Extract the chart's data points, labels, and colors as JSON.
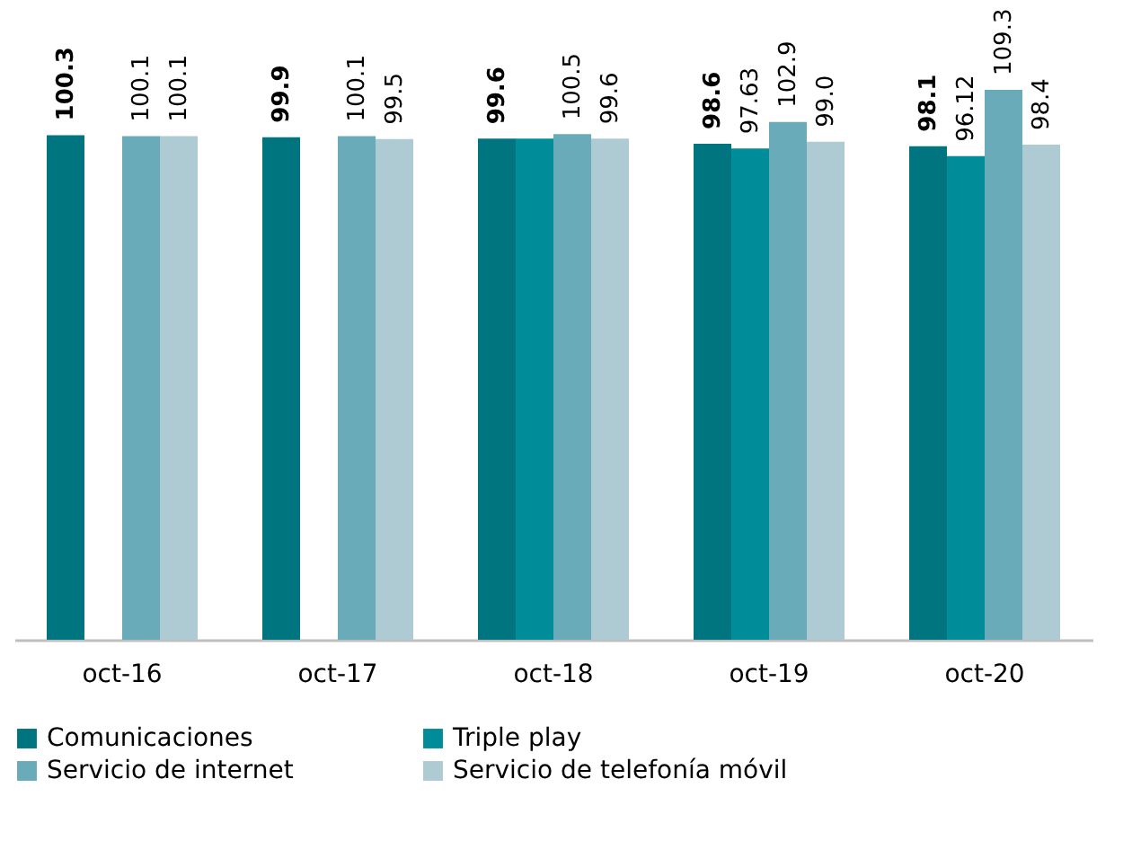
{
  "chart_data": {
    "type": "bar",
    "categories": [
      "oct-16",
      "oct-17",
      "oct-18",
      "oct-19",
      "oct-20"
    ],
    "series": [
      {
        "name": "Comunicaciones",
        "color": "#00747f",
        "values": [
          100.3,
          99.9,
          99.6,
          98.6,
          98.1
        ],
        "value_labels": [
          "100.3",
          "99.9",
          "99.6",
          "98.6",
          "98.1"
        ]
      },
      {
        "name": "Triple play",
        "color": "#008c99",
        "values": [
          null,
          null,
          99.6,
          97.63,
          96.12
        ],
        "value_labels": [
          null,
          null,
          null,
          "97.63",
          "96.12"
        ]
      },
      {
        "name": "Servicio de internet",
        "color": "#6aabb9",
        "values": [
          100.1,
          100.1,
          100.5,
          102.9,
          109.3
        ],
        "value_labels": [
          "100.1",
          "100.1",
          "100.5",
          "102.9",
          "109.3"
        ]
      },
      {
        "name": "Servicio de telefonía móvil",
        "color": "#aecbd3",
        "values": [
          100.1,
          99.5,
          99.6,
          99.0,
          98.4
        ],
        "value_labels": [
          "100.1",
          "99.5",
          "99.6",
          "99.0",
          "98.4"
        ]
      }
    ],
    "legend": "bottom",
    "grid": false,
    "tick_labels": "x"
  }
}
